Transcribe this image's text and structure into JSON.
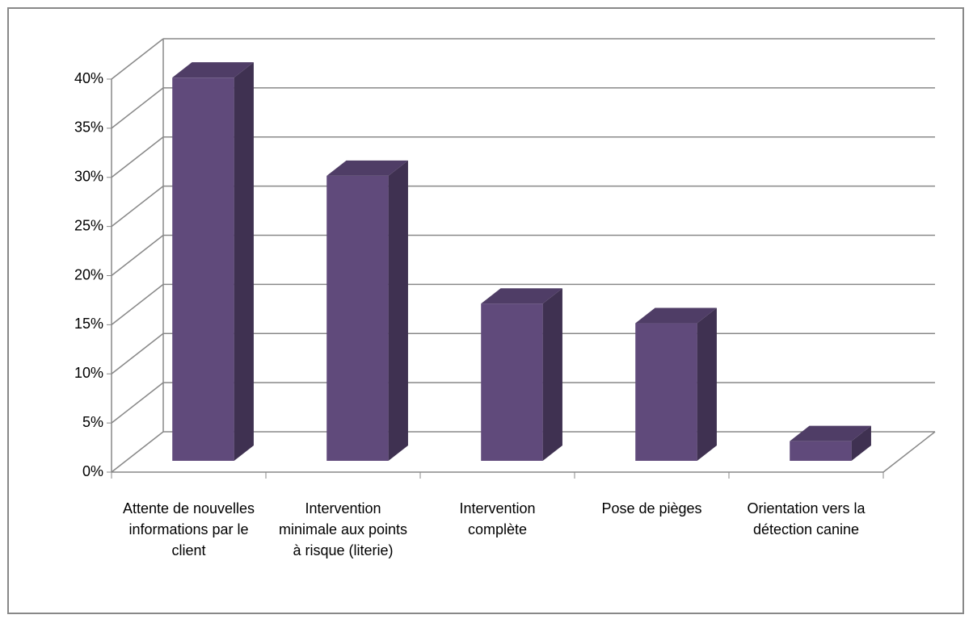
{
  "chart_data": {
    "type": "bar3d",
    "categories": [
      "Attente de nouvelles informations par le client",
      "Intervention minimale aux points à risque (literie)",
      "Intervention complète",
      "Pose de pièges",
      "Orientation vers la détection canine"
    ],
    "values": [
      39,
      29,
      16,
      14,
      2
    ],
    "color": "#604a7b",
    "ylim": [
      0,
      40
    ],
    "yticks": [
      {
        "value": 0,
        "label": "0%"
      },
      {
        "value": 5,
        "label": "5%"
      },
      {
        "value": 10,
        "label": "10%"
      },
      {
        "value": 15,
        "label": "15%"
      },
      {
        "value": 20,
        "label": "20%"
      },
      {
        "value": 25,
        "label": "25%"
      },
      {
        "value": 30,
        "label": "30%"
      },
      {
        "value": 35,
        "label": "35%"
      },
      {
        "value": 40,
        "label": "40%"
      }
    ],
    "grid": true
  }
}
